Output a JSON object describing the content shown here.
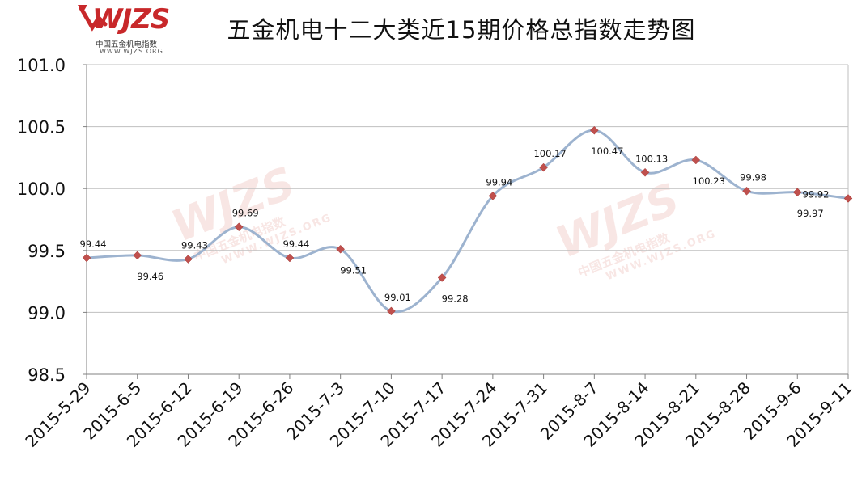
{
  "title": "五金机电十二大类近15期价格总指数走势图",
  "logo": {
    "brand": "WJZS",
    "subtitle": "中国五金机电指数",
    "url": "WWW.WJZS.ORG"
  },
  "watermark": {
    "brand": "WJZS",
    "subtitle": "中国五金机电指数",
    "url": "WWW.WJZS.ORG"
  },
  "colors": {
    "line": "#9db3cf",
    "marker": "#c0504d",
    "grid": "#bfbfbf",
    "axis": "#808080"
  },
  "chart_data": {
    "type": "line",
    "categories": [
      "2015-5-29",
      "2015-6-5",
      "2015-6-12",
      "2015-6-19",
      "2015-6-26",
      "2015-7-3",
      "2015-7-10",
      "2015-7-17",
      "2015-7-24",
      "2015-7-31",
      "2015-8-7",
      "2015-8-14",
      "2015-8-21",
      "2015-8-28",
      "2015-9-6",
      "2015-9-11"
    ],
    "series": [
      {
        "values": [
          99.44,
          99.46,
          99.43,
          99.69,
          99.44,
          99.51,
          99.01,
          99.28,
          99.94,
          100.17,
          100.47,
          100.13,
          100.23,
          99.98,
          99.97,
          99.92
        ]
      }
    ],
    "data_labels": [
      "99.44",
      "99.46",
      "99.43",
      "99.69",
      "99.44",
      "99.51",
      "99.01",
      "99.28",
      "99.94",
      "100.17",
      "100.47",
      "100.13",
      "100.23",
      "99.98",
      "99.97",
      "99.92"
    ],
    "label_positions": [
      "above",
      "below",
      "above",
      "above",
      "above",
      "below",
      "above",
      "below",
      "above",
      "above",
      "below",
      "above",
      "below",
      "above",
      "below",
      "right"
    ],
    "ylim": [
      98.5,
      101.0
    ],
    "yticks": [
      "98.5",
      "99.0",
      "99.5",
      "100.0",
      "100.5",
      "101.0"
    ],
    "ytick_values": [
      98.5,
      99.0,
      99.5,
      100.0,
      100.5,
      101.0
    ],
    "grid": true,
    "legend": "none",
    "smooth": true
  }
}
